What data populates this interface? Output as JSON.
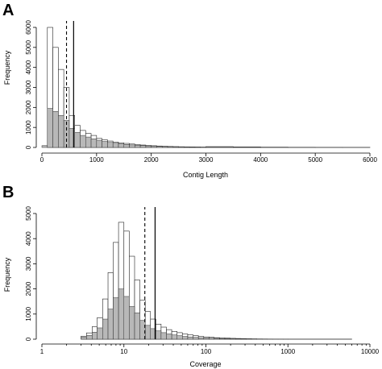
{
  "chart_data": [
    {
      "type": "bar",
      "panel_label": "A",
      "xlabel": "Contig Length",
      "ylabel": "Frequency",
      "x_scale": "linear",
      "xlim": [
        0,
        6000
      ],
      "ylim": [
        0,
        6000
      ],
      "x_ticks": [
        0,
        1000,
        2000,
        3000,
        4000,
        5000,
        6000
      ],
      "y_ticks": [
        0,
        1000,
        2000,
        3000,
        4000,
        5000,
        6000
      ],
      "bin_width": 100,
      "series": [
        {
          "style": "open",
          "bins": [
            [
              100,
              200,
              6000
            ],
            [
              200,
              300,
              5000
            ],
            [
              300,
              400,
              3900
            ],
            [
              400,
              500,
              3000
            ],
            [
              500,
              600,
              1600
            ],
            [
              600,
              700,
              1100
            ],
            [
              700,
              800,
              850
            ],
            [
              800,
              900,
              700
            ],
            [
              900,
              1000,
              600
            ],
            [
              1000,
              1100,
              450
            ],
            [
              1100,
              1200,
              380
            ],
            [
              1200,
              1300,
              320
            ],
            [
              1300,
              1400,
              270
            ],
            [
              1400,
              1500,
              230
            ],
            [
              1500,
              1600,
              200
            ],
            [
              1600,
              1700,
              170
            ],
            [
              1700,
              1800,
              140
            ],
            [
              1800,
              1900,
              120
            ],
            [
              1900,
              2000,
              100
            ],
            [
              2000,
              2100,
              85
            ],
            [
              2100,
              2200,
              70
            ],
            [
              2200,
              2300,
              60
            ],
            [
              2300,
              2400,
              50
            ],
            [
              2400,
              2500,
              42
            ],
            [
              2500,
              2600,
              36
            ],
            [
              2600,
              2700,
              30
            ],
            [
              2700,
              2800,
              26
            ],
            [
              2800,
              2900,
              22
            ],
            [
              2900,
              3000,
              18
            ],
            [
              3000,
              3500,
              40
            ],
            [
              3500,
              4000,
              25
            ],
            [
              4000,
              4500,
              15
            ],
            [
              4500,
              5000,
              10
            ],
            [
              5000,
              5500,
              8
            ],
            [
              5500,
              6000,
              5
            ]
          ]
        },
        {
          "style": "gray",
          "bins": [
            [
              0,
              100,
              90
            ],
            [
              100,
              200,
              1950
            ],
            [
              200,
              300,
              1800
            ],
            [
              300,
              400,
              1600
            ],
            [
              400,
              500,
              1350
            ],
            [
              500,
              600,
              950
            ],
            [
              600,
              700,
              750
            ],
            [
              700,
              800,
              600
            ],
            [
              800,
              900,
              520
            ],
            [
              900,
              1000,
              430
            ],
            [
              1000,
              1100,
              360
            ],
            [
              1100,
              1200,
              300
            ],
            [
              1200,
              1300,
              250
            ],
            [
              1300,
              1400,
              210
            ],
            [
              1400,
              1500,
              180
            ],
            [
              1500,
              1600,
              150
            ],
            [
              1600,
              1700,
              125
            ],
            [
              1700,
              1800,
              105
            ],
            [
              1800,
              1900,
              90
            ],
            [
              1900,
              2000,
              75
            ],
            [
              2000,
              2100,
              65
            ],
            [
              2100,
              2200,
              55
            ],
            [
              2200,
              2300,
              45
            ],
            [
              2300,
              2400,
              38
            ],
            [
              2400,
              2500,
              32
            ],
            [
              2500,
              2600,
              27
            ],
            [
              2600,
              2700,
              23
            ],
            [
              2700,
              2800,
              19
            ],
            [
              2800,
              2900,
              16
            ],
            [
              2900,
              3000,
              13
            ],
            [
              3000,
              3500,
              30
            ],
            [
              3500,
              4000,
              18
            ],
            [
              4000,
              4500,
              10
            ],
            [
              4500,
              5000,
              7
            ],
            [
              5000,
              5500,
              5
            ],
            [
              5500,
              6000,
              3
            ]
          ]
        }
      ],
      "vlines": [
        {
          "x": 450,
          "style": "dashed"
        },
        {
          "x": 580,
          "style": "solid"
        }
      ]
    },
    {
      "type": "bar",
      "panel_label": "B",
      "xlabel": "Coverage",
      "ylabel": "Frequency",
      "x_scale": "log",
      "xlim": [
        1,
        10000
      ],
      "ylim": [
        0,
        5000
      ],
      "x_ticks": [
        1,
        10,
        100,
        1000,
        10000
      ],
      "y_ticks": [
        0,
        1000,
        2000,
        3000,
        4000,
        5000
      ],
      "series": [
        {
          "style": "open",
          "bins": [
            [
              3.0,
              3.5,
              120
            ],
            [
              3.5,
              4.1,
              250
            ],
            [
              4.1,
              4.7,
              500
            ],
            [
              4.7,
              5.5,
              850
            ],
            [
              5.5,
              6.4,
              1600
            ],
            [
              6.4,
              7.4,
              2650
            ],
            [
              7.4,
              8.6,
              3850
            ],
            [
              8.6,
              10.0,
              4650
            ],
            [
              10.0,
              11.6,
              4300
            ],
            [
              11.6,
              13.5,
              3300
            ],
            [
              13.5,
              15.7,
              2350
            ],
            [
              15.7,
              18.2,
              1550
            ],
            [
              18.2,
              21.1,
              1100
            ],
            [
              21.1,
              24.5,
              800
            ],
            [
              24.5,
              28.4,
              600
            ],
            [
              28.4,
              33.0,
              480
            ],
            [
              33.0,
              38.3,
              380
            ],
            [
              38.3,
              44.5,
              310
            ],
            [
              44.5,
              51.6,
              260
            ],
            [
              51.6,
              60.0,
              210
            ],
            [
              60,
              70,
              170
            ],
            [
              70,
              81,
              140
            ],
            [
              81,
              94,
              110
            ],
            [
              94,
              109,
              90
            ],
            [
              109,
              126,
              75
            ],
            [
              126,
              147,
              60
            ],
            [
              147,
              170,
              50
            ],
            [
              170,
              198,
              42
            ],
            [
              198,
              230,
              34
            ],
            [
              230,
              267,
              28
            ],
            [
              267,
              310,
              22
            ],
            [
              310,
              360,
              18
            ],
            [
              360,
              418,
              14
            ],
            [
              418,
              485,
              11
            ],
            [
              485,
              563,
              9
            ],
            [
              563,
              654,
              7
            ],
            [
              654,
              760,
              5
            ],
            [
              760,
              880,
              4
            ],
            [
              880,
              1000,
              3
            ],
            [
              1000,
              6000,
              2
            ]
          ]
        },
        {
          "style": "gray",
          "bins": [
            [
              3.0,
              3.5,
              80
            ],
            [
              3.5,
              4.1,
              150
            ],
            [
              4.1,
              4.7,
              280
            ],
            [
              4.7,
              5.5,
              450
            ],
            [
              5.5,
              6.4,
              800
            ],
            [
              6.4,
              7.4,
              1200
            ],
            [
              7.4,
              8.6,
              1650
            ],
            [
              8.6,
              10.0,
              2000
            ],
            [
              10.0,
              11.6,
              1700
            ],
            [
              11.6,
              13.5,
              1300
            ],
            [
              13.5,
              15.7,
              1050
            ],
            [
              15.7,
              18.2,
              750
            ],
            [
              18.2,
              21.1,
              550
            ],
            [
              21.1,
              24.5,
              420
            ],
            [
              24.5,
              28.4,
              330
            ],
            [
              28.4,
              33.0,
              260
            ],
            [
              33.0,
              38.3,
              210
            ],
            [
              38.3,
              44.5,
              170
            ],
            [
              44.5,
              51.6,
              140
            ],
            [
              51.6,
              60.0,
              110
            ],
            [
              60,
              70,
              90
            ],
            [
              70,
              81,
              75
            ],
            [
              81,
              94,
              60
            ],
            [
              94,
              109,
              50
            ],
            [
              109,
              126,
              42
            ],
            [
              126,
              147,
              35
            ],
            [
              147,
              170,
              28
            ],
            [
              170,
              198,
              23
            ],
            [
              198,
              230,
              19
            ],
            [
              230,
              267,
              15
            ],
            [
              267,
              310,
              12
            ],
            [
              310,
              360,
              10
            ],
            [
              360,
              418,
              8
            ],
            [
              418,
              485,
              6
            ],
            [
              485,
              563,
              5
            ],
            [
              563,
              654,
              4
            ],
            [
              654,
              760,
              3
            ],
            [
              760,
              880,
              2
            ],
            [
              880,
              1000,
              2
            ],
            [
              1000,
              6000,
              1
            ]
          ]
        }
      ],
      "vlines": [
        {
          "x": 18,
          "style": "dashed"
        },
        {
          "x": 24,
          "style": "solid"
        }
      ]
    }
  ]
}
